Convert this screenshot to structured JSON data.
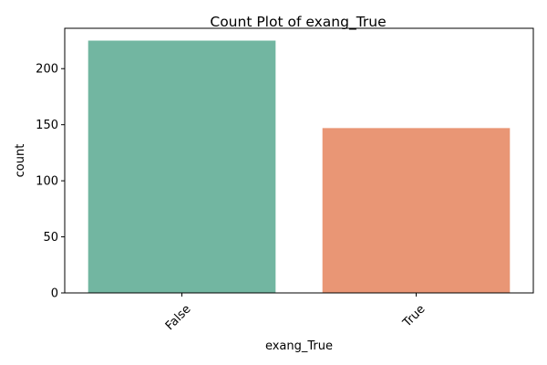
{
  "chart_data": {
    "type": "bar",
    "title": "Count Plot of exang_True",
    "xlabel": "exang_True",
    "ylabel": "count",
    "categories": [
      "False",
      "True"
    ],
    "values": [
      225,
      147
    ],
    "colors": [
      "#72b6a1",
      "#e99675"
    ],
    "ylim": [
      0,
      236
    ],
    "yticks": [
      0,
      50,
      100,
      150,
      200
    ],
    "grid": false,
    "x_tick_rotation_deg": 45
  }
}
